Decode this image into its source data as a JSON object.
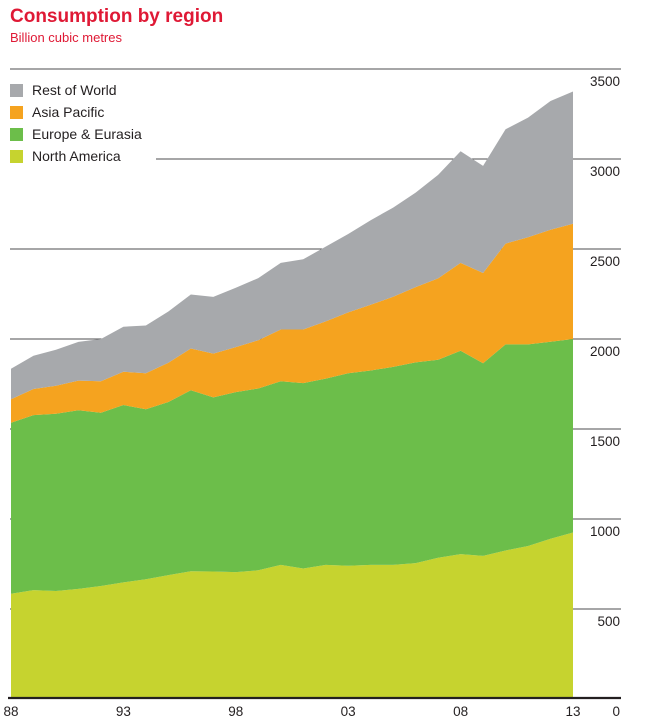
{
  "header": {
    "title": "Consumption by region",
    "subtitle": "Billion cubic metres",
    "accent_color": "#df1935"
  },
  "chart_data": {
    "type": "area",
    "stacked": true,
    "title": "Consumption by region",
    "units": "Billion cubic metres",
    "grid": "horizontal",
    "legend_position": "top-left",
    "legend_order": [
      "Rest of World",
      "Asia Pacific",
      "Europe & Eurasia",
      "North America"
    ],
    "ylim": [
      0,
      3500
    ],
    "y_ticks": [
      0,
      500,
      1000,
      1500,
      2000,
      2500,
      3000,
      3500
    ],
    "x_ticks": [
      {
        "year": 1988,
        "label": "88"
      },
      {
        "year": 1993,
        "label": "93"
      },
      {
        "year": 1998,
        "label": "98"
      },
      {
        "year": 2003,
        "label": "03"
      },
      {
        "year": 2008,
        "label": "08"
      },
      {
        "year": 2013,
        "label": "13"
      }
    ],
    "zero_label": "0",
    "axis_color": "#231f20",
    "grid_color": "#4d4d4f",
    "years": [
      1988,
      1989,
      1990,
      1991,
      1992,
      1993,
      1994,
      1995,
      1996,
      1997,
      1998,
      1999,
      2000,
      2001,
      2002,
      2003,
      2004,
      2005,
      2006,
      2007,
      2008,
      2009,
      2010,
      2011,
      2012,
      2013
    ],
    "series": [
      {
        "name": "North America",
        "color": "#c6d32f",
        "values": [
          585,
          605,
          600,
          612,
          628,
          648,
          665,
          688,
          710,
          708,
          705,
          715,
          745,
          725,
          745,
          740,
          745,
          745,
          755,
          785,
          805,
          795,
          825,
          850,
          890,
          925
        ]
      },
      {
        "name": "Europe & Eurasia",
        "color": "#6cbe4a",
        "values": [
          950,
          972,
          985,
          992,
          962,
          985,
          945,
          962,
          1005,
          968,
          1000,
          1010,
          1020,
          1030,
          1035,
          1070,
          1080,
          1100,
          1115,
          1100,
          1130,
          1070,
          1145,
          1120,
          1095,
          1075
        ]
      },
      {
        "name": "Asia Pacific",
        "color": "#f5a31f",
        "values": [
          130,
          145,
          155,
          165,
          175,
          185,
          200,
          218,
          232,
          243,
          250,
          268,
          288,
          298,
          318,
          338,
          365,
          390,
          418,
          452,
          488,
          502,
          560,
          595,
          622,
          640
        ]
      },
      {
        "name": "Rest of World",
        "color": "#a7a9ac",
        "values": [
          170,
          185,
          200,
          215,
          235,
          250,
          265,
          285,
          300,
          315,
          330,
          345,
          370,
          390,
          415,
          435,
          470,
          495,
          525,
          575,
          620,
          595,
          635,
          665,
          715,
          735
        ]
      }
    ]
  }
}
